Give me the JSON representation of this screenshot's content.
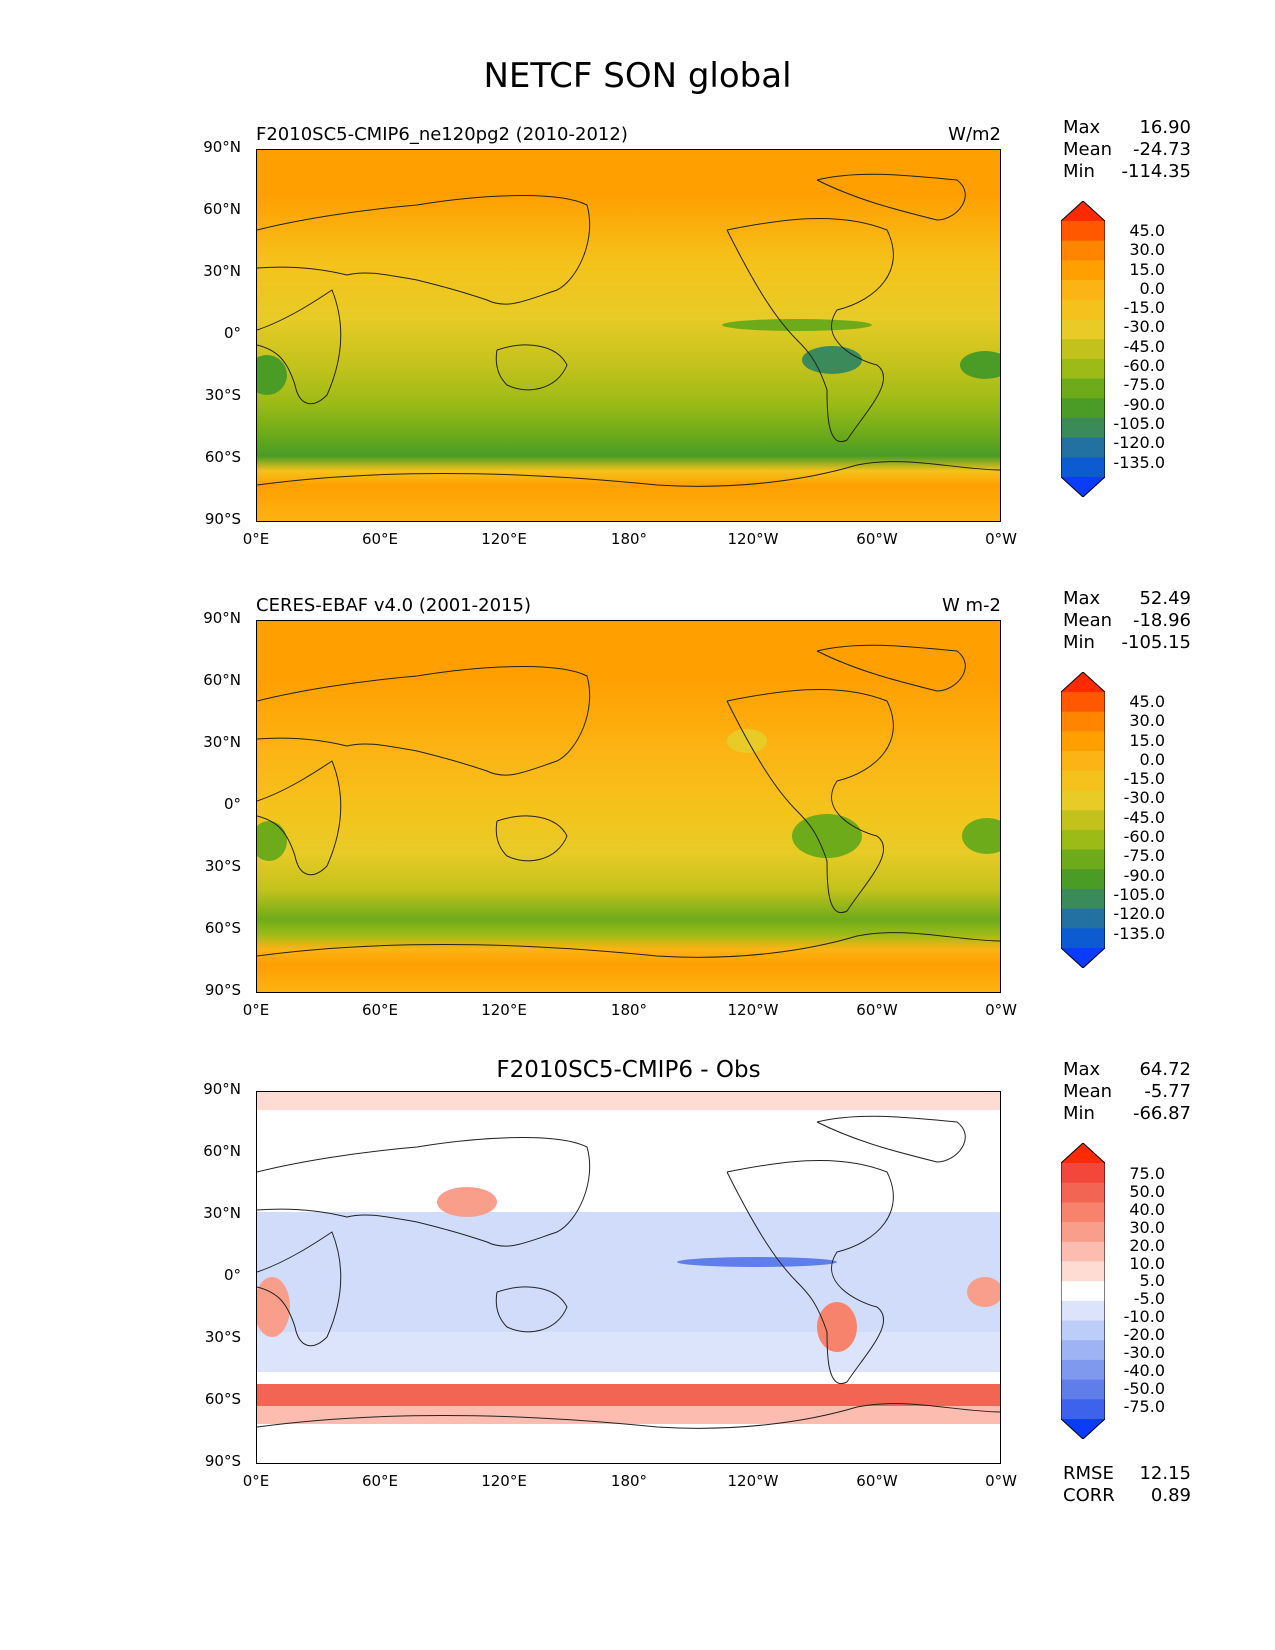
{
  "title": "NETCF SON global",
  "axes": {
    "lat_labels": [
      "90°N",
      "60°N",
      "30°N",
      "0°",
      "30°S",
      "60°S",
      "90°S"
    ],
    "lon_labels": [
      "0°E",
      "60°E",
      "120°E",
      "180°",
      "120°W",
      "60°W",
      "0°W"
    ]
  },
  "panels": [
    {
      "title_left": "F2010SC5-CMIP6_ne120pg2 (2010-2012)",
      "title_right": "W/m2",
      "title_center": "",
      "stats": [
        {
          "label": "Max",
          "value": "16.90"
        },
        {
          "label": "Mean",
          "value": "-24.73"
        },
        {
          "label": "Min",
          "value": "-114.35"
        }
      ],
      "colorbar_labels": [
        "45.0",
        "30.0",
        "15.0",
        "0.0",
        "-15.0",
        "-30.0",
        "-45.0",
        "-60.0",
        "-75.0",
        "-90.0",
        "-105.0",
        "-120.0",
        "-135.0"
      ],
      "colorbar_colors": [
        "#ff2a00",
        "#ff5800",
        "#ff8500",
        "#ff9f00",
        "#fcb414",
        "#f5c21b",
        "#e8cb26",
        "#c3c21c",
        "#9cbb16",
        "#6eab1a",
        "#4a9c27",
        "#3a8a5a",
        "#2371a0",
        "#0d5bd0",
        "#0a3cff"
      ],
      "metrics": []
    },
    {
      "title_left": "CERES-EBAF v4.0 (2001-2015)",
      "title_right": "W m-2",
      "title_center": "",
      "stats": [
        {
          "label": "Max",
          "value": "52.49"
        },
        {
          "label": "Mean",
          "value": "-18.96"
        },
        {
          "label": "Min",
          "value": "-105.15"
        }
      ],
      "colorbar_labels": [
        "45.0",
        "30.0",
        "15.0",
        "0.0",
        "-15.0",
        "-30.0",
        "-45.0",
        "-60.0",
        "-75.0",
        "-90.0",
        "-105.0",
        "-120.0",
        "-135.0"
      ],
      "colorbar_colors": [
        "#ff2a00",
        "#ff5800",
        "#ff8500",
        "#ff9f00",
        "#fcb414",
        "#f5c21b",
        "#e8cb26",
        "#c3c21c",
        "#9cbb16",
        "#6eab1a",
        "#4a9c27",
        "#3a8a5a",
        "#2371a0",
        "#0d5bd0",
        "#0a3cff"
      ],
      "metrics": []
    },
    {
      "title_left": "",
      "title_right": "",
      "title_center": "F2010SC5-CMIP6 - Obs",
      "stats": [
        {
          "label": "Max",
          "value": "64.72"
        },
        {
          "label": "Mean",
          "value": "-5.77"
        },
        {
          "label": "Min",
          "value": "-66.87"
        }
      ],
      "colorbar_labels": [
        "75.0",
        "50.0",
        "40.0",
        "30.0",
        "20.0",
        "10.0",
        "5.0",
        "-5.0",
        "-10.0",
        "-20.0",
        "-30.0",
        "-40.0",
        "-50.0",
        "-75.0"
      ],
      "colorbar_colors": [
        "#ff2a00",
        "#f2473a",
        "#f36553",
        "#f7836d",
        "#fa9e8c",
        "#fcbdb0",
        "#fedcd4",
        "#ffffff",
        "#dce4fb",
        "#bccdf8",
        "#9db3f3",
        "#7f99ef",
        "#5f7ee9",
        "#3d62ec",
        "#0a3cff"
      ],
      "metrics": [
        {
          "label": "RMSE",
          "value": "12.15"
        },
        {
          "label": "CORR",
          "value": "0.89"
        }
      ]
    }
  ]
}
